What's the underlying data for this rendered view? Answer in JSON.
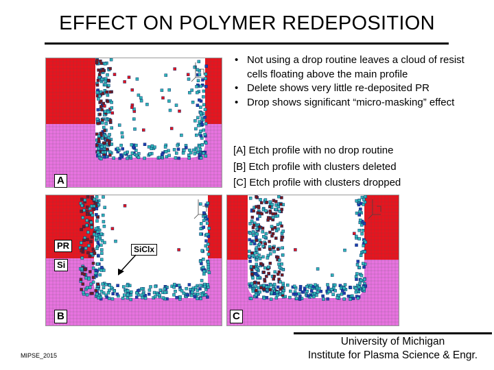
{
  "slide": {
    "title": "EFFECT ON POLYMER REDEPOSITION",
    "bullets": [
      "Not using a drop routine leaves a cloud of resist cells floating above the main profile",
      "Delete shows very little re-deposited PR",
      "Drop shows significant “micro-masking” effect"
    ],
    "captions": [
      "[A] Etch profile with no drop routine",
      "[B] Etch profile with clusters deleted",
      "[C] Etch profile with clusters dropped"
    ]
  },
  "panels": {
    "a": {
      "label": "A"
    },
    "b": {
      "label": "B",
      "pr_label": "PR",
      "si_label": "Si",
      "callout": "SiClx"
    },
    "c": {
      "label": "C"
    }
  },
  "footer": {
    "left": "MIPSE_2015",
    "right_line1": "University of Michigan",
    "right_line2": "Institute for Plasma Science & Engr."
  },
  "colors": {
    "photoresist": "#e8141e",
    "silicon": "#e873e0",
    "grid": "#555555",
    "cluster_teal": "#2fb8b8",
    "cluster_blue": "#2040b0",
    "cluster_dark": "#7a1a1a"
  }
}
